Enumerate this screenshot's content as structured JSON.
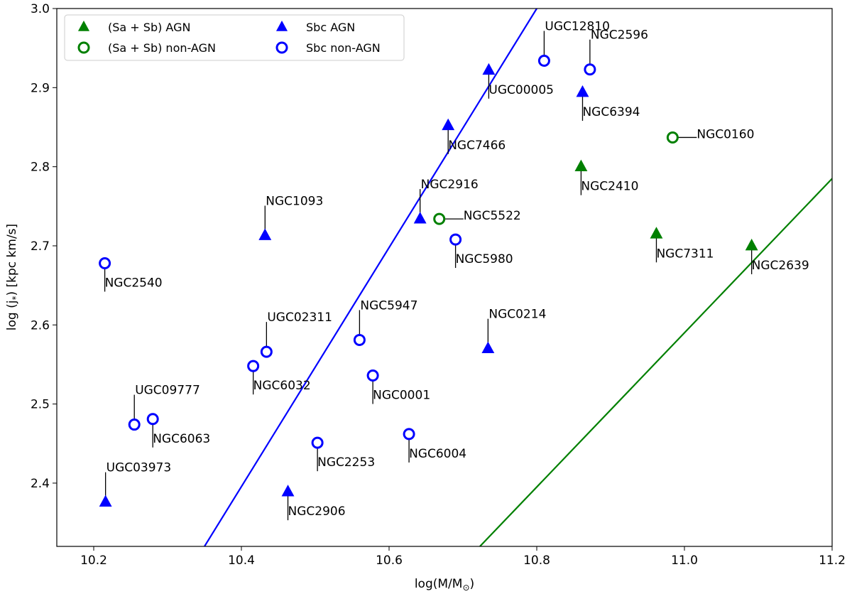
{
  "chart_data": {
    "type": "scatter",
    "title": "",
    "xlabel_main": "log(M/M",
    "xlabel_sub": "⊙",
    "xlabel_end": ")",
    "ylabel_main": "log (j",
    "ylabel_sub": "*",
    "ylabel_end": ") [kpc km/s]",
    "xlim": [
      10.15,
      11.2
    ],
    "ylim": [
      2.32,
      3.0
    ],
    "xticks": [
      10.2,
      10.4,
      10.6,
      10.8,
      11.0,
      11.2
    ],
    "xtick_labels": [
      "10.2",
      "10.4",
      "10.6",
      "10.8",
      "11.0",
      "11.2"
    ],
    "yticks": [
      2.4,
      2.5,
      2.6,
      2.7,
      2.8,
      2.9,
      3.0
    ],
    "ytick_labels": [
      "2.4",
      "2.5",
      "2.6",
      "2.7",
      "2.8",
      "2.9",
      "3.0"
    ],
    "colors": {
      "green": "#008000",
      "blue": "#0000ff"
    },
    "legend": {
      "placement": "top-left",
      "entries": [
        {
          "label": "(Sa + Sb) AGN",
          "marker": "triangle",
          "color": "#008000"
        },
        {
          "label": "Sbc AGN",
          "marker": "triangle",
          "color": "#0000ff"
        },
        {
          "label": "(Sa + Sb) non-AGN",
          "marker": "circle",
          "color": "#008000"
        },
        {
          "label": "Sbc non-AGN",
          "marker": "circle",
          "color": "#0000ff"
        }
      ]
    },
    "lines": [
      {
        "name": "Sbc relation",
        "color": "#0000ff",
        "x": [
          10.35,
          10.8
        ],
        "y": [
          2.32,
          3.0
        ]
      },
      {
        "name": "Sa+Sb relation",
        "color": "#008000",
        "x": [
          10.723,
          11.2
        ],
        "y": [
          2.32,
          2.785
        ]
      }
    ],
    "series": [
      {
        "name": "(Sa + Sb) AGN",
        "marker": "triangle",
        "color": "#008000",
        "points": [
          {
            "label": "NGC2410",
            "x": 10.86,
            "y": 2.8,
            "label_dir": "below"
          },
          {
            "label": "NGC7311",
            "x": 10.962,
            "y": 2.715,
            "label_dir": "below"
          },
          {
            "label": "NGC2639",
            "x": 11.091,
            "y": 2.7,
            "label_dir": "below"
          }
        ]
      },
      {
        "name": "Sbc AGN",
        "marker": "triangle",
        "color": "#0000ff",
        "points": [
          {
            "label": "UGC00005",
            "x": 10.735,
            "y": 2.922,
            "label_dir": "below"
          },
          {
            "label": "NGC6394",
            "x": 10.862,
            "y": 2.894,
            "label_dir": "below"
          },
          {
            "label": "NGC7466",
            "x": 10.68,
            "y": 2.852,
            "label_dir": "below"
          },
          {
            "label": "NGC2916",
            "x": 10.642,
            "y": 2.734,
            "label_dir": "above"
          },
          {
            "label": "NGC1093",
            "x": 10.432,
            "y": 2.713,
            "label_dir": "above"
          },
          {
            "label": "NGC0214",
            "x": 10.734,
            "y": 2.57,
            "label_dir": "above"
          },
          {
            "label": "NGC2906",
            "x": 10.463,
            "y": 2.389,
            "label_dir": "below"
          },
          {
            "label": "UGC03973",
            "x": 10.216,
            "y": 2.376,
            "label_dir": "above"
          }
        ]
      },
      {
        "name": "(Sa + Sb) non-AGN",
        "marker": "circle",
        "color": "#008000",
        "points": [
          {
            "label": "NGC0160",
            "x": 10.984,
            "y": 2.837,
            "label_dir": "right"
          },
          {
            "label": "NGC5522",
            "x": 10.668,
            "y": 2.734,
            "label_dir": "right"
          }
        ]
      },
      {
        "name": "Sbc non-AGN",
        "marker": "circle",
        "color": "#0000ff",
        "points": [
          {
            "label": "UGC12810",
            "x": 10.81,
            "y": 2.934,
            "label_dir": "above"
          },
          {
            "label": "NGC2596",
            "x": 10.872,
            "y": 2.923,
            "label_dir": "above"
          },
          {
            "label": "NGC5980",
            "x": 10.69,
            "y": 2.708,
            "label_dir": "below"
          },
          {
            "label": "NGC2540",
            "x": 10.215,
            "y": 2.678,
            "label_dir": "below"
          },
          {
            "label": "NGC5947",
            "x": 10.56,
            "y": 2.581,
            "label_dir": "above"
          },
          {
            "label": "UGC02311",
            "x": 10.434,
            "y": 2.566,
            "label_dir": "above"
          },
          {
            "label": "NGC6032",
            "x": 10.416,
            "y": 2.548,
            "label_dir": "below"
          },
          {
            "label": "NGC0001",
            "x": 10.578,
            "y": 2.536,
            "label_dir": "below"
          },
          {
            "label": "UGC09777",
            "x": 10.255,
            "y": 2.474,
            "label_dir": "above"
          },
          {
            "label": "NGC6063",
            "x": 10.28,
            "y": 2.481,
            "label_dir": "below"
          },
          {
            "label": "NGC6004",
            "x": 10.627,
            "y": 2.462,
            "label_dir": "below"
          },
          {
            "label": "NGC2253",
            "x": 10.503,
            "y": 2.451,
            "label_dir": "below"
          }
        ]
      }
    ]
  }
}
